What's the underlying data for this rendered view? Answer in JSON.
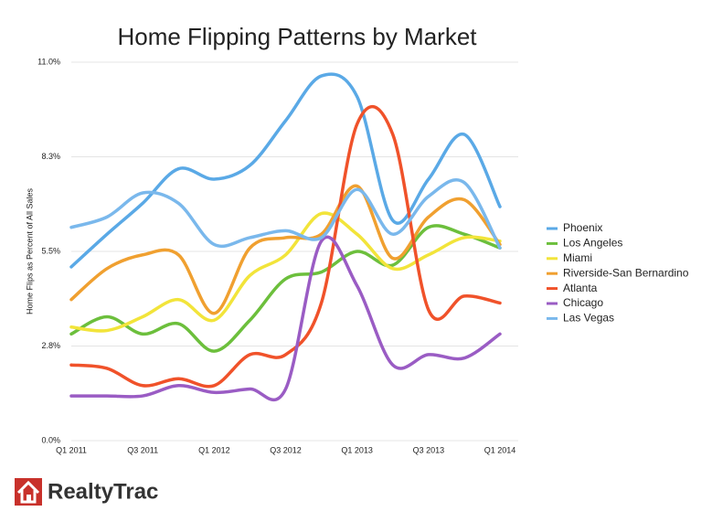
{
  "chart_data": {
    "type": "line",
    "title": "Home Flipping Patterns by Market",
    "ylabel": "Home Flips as Percent of All Sales",
    "categories": [
      "Q1 2011",
      null,
      "Q3 2011",
      null,
      "Q1 2012",
      null,
      "Q3 2012",
      null,
      "Q1 2013",
      null,
      "Q3 2013",
      null,
      "Q1 2014"
    ],
    "ylim": [
      0,
      11
    ],
    "yticks": [
      {
        "value": 0,
        "label": "0.0%"
      },
      {
        "value": 2.75,
        "label": "2.8%"
      },
      {
        "value": 5.5,
        "label": "5.5%"
      },
      {
        "value": 8.25,
        "label": "8.3%"
      },
      {
        "value": 11,
        "label": "11.0%"
      }
    ],
    "grid": true,
    "legend": "right",
    "smooth": true,
    "series": [
      {
        "name": "Phoenix",
        "color": "#5aa9e6",
        "values": [
          5.05,
          6.0,
          6.9,
          7.9,
          7.6,
          8.0,
          9.3,
          10.6,
          10.0,
          6.4,
          7.6,
          8.9,
          6.8
        ]
      },
      {
        "name": "Los Angeles",
        "color": "#6cbf3c",
        "values": [
          3.1,
          3.6,
          3.1,
          3.4,
          2.6,
          3.5,
          4.7,
          4.9,
          5.5,
          5.1,
          6.2,
          6.0,
          5.6
        ]
      },
      {
        "name": "Miami",
        "color": "#f2e43a",
        "values": [
          3.3,
          3.2,
          3.6,
          4.1,
          3.5,
          4.8,
          5.4,
          6.6,
          6.0,
          5.0,
          5.4,
          5.9,
          5.8
        ]
      },
      {
        "name": "Riverside-San Bernardino",
        "color": "#f0a030",
        "values": [
          4.1,
          5.0,
          5.4,
          5.4,
          3.7,
          5.6,
          5.9,
          6.0,
          7.4,
          5.3,
          6.5,
          7.0,
          5.7
        ]
      },
      {
        "name": "Atlanta",
        "color": "#f0522a",
        "values": [
          2.2,
          2.1,
          1.6,
          1.8,
          1.6,
          2.5,
          2.5,
          4.0,
          9.2,
          8.9,
          3.8,
          4.2,
          4.0
        ]
      },
      {
        "name": "Chicago",
        "color": "#9a5cc4",
        "values": [
          1.3,
          1.3,
          1.3,
          1.6,
          1.4,
          1.5,
          1.5,
          5.8,
          4.5,
          2.2,
          2.5,
          2.4,
          3.1
        ]
      },
      {
        "name": "Las Vegas",
        "color": "#7ab8ec",
        "values": [
          6.2,
          6.5,
          7.2,
          6.9,
          5.7,
          5.9,
          6.1,
          5.9,
          7.3,
          6.0,
          7.1,
          7.5,
          5.6
        ]
      }
    ]
  },
  "logo": "RealtyTrac"
}
